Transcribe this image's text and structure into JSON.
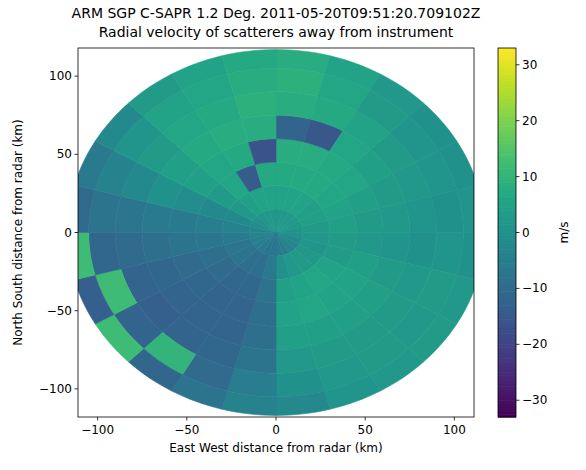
{
  "chart_data": {
    "type": "heatmap",
    "title": "ARM SGP C-SAPR 1.2 Deg. 2011-05-20T09:51:20.709102Z",
    "subtitle": "Radial velocity of scatterers away from instrument",
    "x_label": "East West distance from radar (km)",
    "y_label": "North South distance from radar (km)",
    "xlim": [
      -111,
      111
    ],
    "ylim": [
      -118,
      118
    ],
    "xticks": [
      {
        "value": -100,
        "label": "−100"
      },
      {
        "value": -50,
        "label": "−50"
      },
      0,
      50,
      100
    ],
    "yticks": [
      {
        "value": -100,
        "label": "−100"
      },
      {
        "value": -50,
        "label": "−50"
      },
      0,
      50,
      100
    ],
    "grid": false,
    "azimuths": [
      0,
      15,
      30,
      45,
      60,
      75,
      90,
      105,
      120,
      135,
      150,
      165,
      180,
      195,
      210,
      225,
      240,
      255,
      270,
      285,
      300,
      315,
      330,
      345,
      360
    ],
    "ranges": [
      0,
      15,
      30,
      45,
      60,
      75,
      90,
      105,
      117
    ],
    "cells": [
      [
        2,
        5,
        7,
        8,
        -12,
        8,
        9,
        8
      ],
      [
        2,
        5,
        7,
        8,
        -15,
        7,
        6,
        5
      ],
      [
        2,
        5,
        7,
        7,
        6,
        5,
        3,
        2
      ],
      [
        2,
        4,
        6,
        6,
        4,
        3,
        1,
        0
      ],
      [
        2,
        4,
        5,
        4,
        3,
        2,
        1,
        0
      ],
      [
        1,
        3,
        4,
        3,
        2,
        1,
        0,
        1
      ],
      [
        0,
        2,
        3,
        2,
        1,
        0,
        1,
        0
      ],
      [
        -2,
        1,
        3,
        4,
        3,
        2,
        3,
        2
      ],
      [
        -3,
        2,
        5,
        5,
        4,
        3,
        2,
        3
      ],
      [
        -4,
        3,
        6,
        5,
        4,
        3,
        3,
        2
      ],
      [
        -5,
        2,
        5,
        6,
        4,
        3,
        2,
        1
      ],
      [
        -6,
        0,
        4,
        5,
        4,
        2,
        0,
        -2
      ],
      [
        -7,
        -6,
        -8,
        -9,
        -9,
        -8,
        -5,
        -4
      ],
      [
        -7,
        -9,
        -11,
        -12,
        -12,
        -11,
        -10,
        -8
      ],
      [
        -6,
        -9,
        -11,
        -12,
        -12,
        -12,
        10,
        -11
      ],
      [
        -5,
        -8,
        -10,
        -11,
        -12,
        -13,
        -12,
        12
      ],
      [
        -5,
        -7,
        -9,
        -10,
        -11,
        -12,
        12,
        -13
      ],
      [
        -4,
        -6,
        -7,
        -8,
        -9,
        -10,
        -11,
        12
      ],
      [
        -3,
        -4,
        -5,
        -6,
        -6,
        -7,
        -8,
        -10
      ],
      [
        -1,
        -2,
        -2,
        -1,
        0,
        -2,
        -4,
        -6
      ],
      [
        0,
        2,
        3,
        4,
        4,
        3,
        1,
        -2
      ],
      [
        1,
        4,
        6,
        6,
        7,
        6,
        5,
        3
      ],
      [
        2,
        5,
        -14,
        7,
        8,
        7,
        6,
        5
      ],
      [
        2,
        5,
        7,
        -16,
        8,
        9,
        8,
        7
      ]
    ],
    "colorbar": {
      "label": "m/s",
      "range": [
        -33,
        33
      ],
      "ticks": [
        {
          "value": -30,
          "label": "−30"
        },
        {
          "value": -20,
          "label": "−20"
        },
        {
          "value": -10,
          "label": "−10"
        },
        0,
        10,
        20,
        30
      ]
    }
  }
}
